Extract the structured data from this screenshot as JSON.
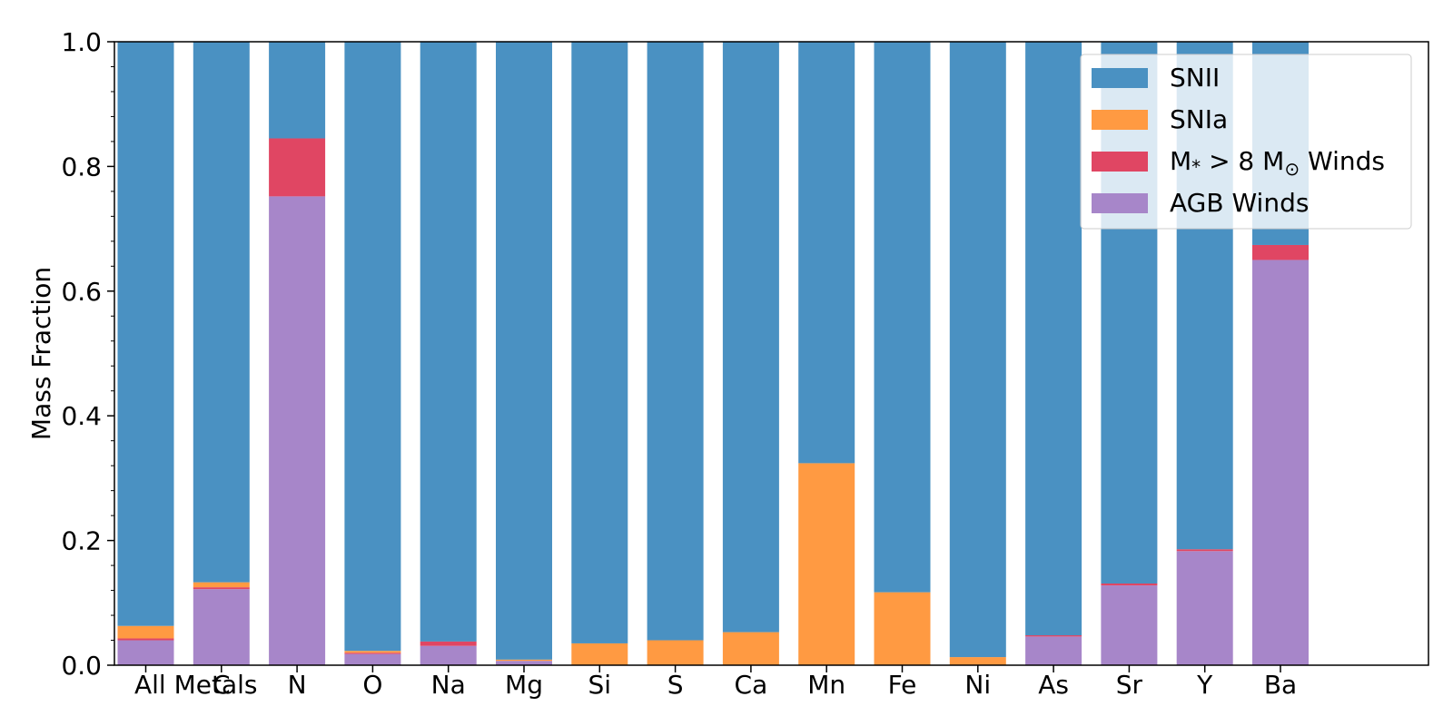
{
  "chart_data": {
    "type": "bar",
    "stacked": true,
    "categories": [
      "All Metals",
      "C",
      "N",
      "O",
      "Na",
      "Mg",
      "Si",
      "S",
      "Ca",
      "Mn",
      "Fe",
      "Ni",
      "As",
      "Sr",
      "Y",
      "Ba"
    ],
    "series": [
      {
        "name": "AGB Winds",
        "color": "#a786c9",
        "values": [
          0.04,
          0.122,
          0.752,
          0.018,
          0.031,
          0.007,
          0.0,
          0.0,
          0.0,
          0.0,
          0.0,
          0.0,
          0.046,
          0.128,
          0.183,
          0.65
        ]
      },
      {
        "name": "M* > 8 Mo Winds",
        "label_parts": {
          "m": "M",
          "star": "*",
          "gt": " > 8 ",
          "msun": "M",
          "sun": "⊙",
          "tail": " Winds"
        },
        "color": "#e04663",
        "values": [
          0.003,
          0.003,
          0.093,
          0.002,
          0.007,
          0.0,
          0.0,
          0.0,
          0.0,
          0.0,
          0.0,
          0.0,
          0.002,
          0.003,
          0.003,
          0.024
        ]
      },
      {
        "name": "SNIa",
        "color": "#ff9a42",
        "values": [
          0.02,
          0.008,
          0.0,
          0.003,
          0.0,
          0.002,
          0.035,
          0.04,
          0.053,
          0.324,
          0.117,
          0.013,
          0.0,
          0.0,
          0.0,
          0.0
        ]
      },
      {
        "name": "SNII",
        "color": "#4a91c2",
        "values": [
          0.937,
          0.867,
          0.155,
          0.977,
          0.962,
          0.991,
          0.965,
          0.96,
          0.947,
          0.676,
          0.883,
          0.987,
          0.952,
          0.869,
          0.814,
          0.326
        ]
      }
    ],
    "legend_order": [
      "SNII",
      "SNIa",
      "M* > 8 Mo Winds",
      "AGB Winds"
    ],
    "ylabel": "Mass Fraction",
    "xlabel": "",
    "ylim": [
      0,
      1.0
    ],
    "yticks": [
      "0.0",
      "0.2",
      "0.4",
      "0.6",
      "0.8",
      "1.0"
    ],
    "grid": false,
    "legend_position": "top-right"
  }
}
